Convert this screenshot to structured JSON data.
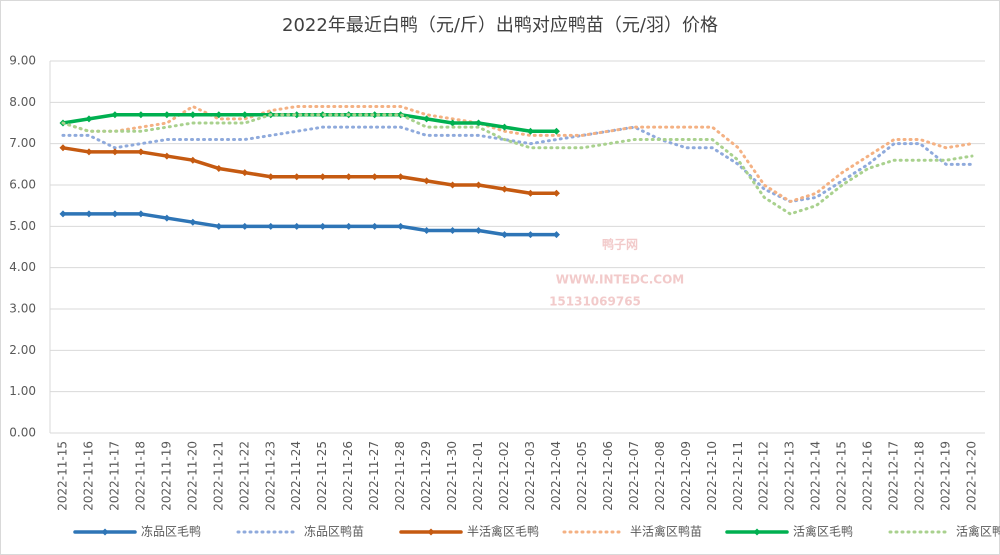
{
  "chart_data": {
    "type": "line",
    "title": "2022年最近白鸭（元/斤）出鸭对应鸭苗（元/羽）价格",
    "watermark": [
      "鸭子网",
      "WWW.INTEDC.COM",
      "15131069765"
    ],
    "categories": [
      "2022-11-15",
      "2022-11-16",
      "2022-11-17",
      "2022-11-18",
      "2022-11-19",
      "2022-11-20",
      "2022-11-21",
      "2022-11-22",
      "2022-11-23",
      "2022-11-24",
      "2022-11-25",
      "2022-11-26",
      "2022-11-27",
      "2022-11-28",
      "2022-11-29",
      "2022-11-30",
      "2022-12-01",
      "2022-12-02",
      "2022-12-03",
      "2022-12-04",
      "2022-12-05",
      "2022-12-06",
      "2022-12-07",
      "2022-12-08",
      "2022-12-09",
      "2022-12-10",
      "2022-12-11",
      "2022-12-12",
      "2022-12-13",
      "2022-12-14",
      "2022-12-15",
      "2022-12-16",
      "2022-12-17",
      "2022-12-18",
      "2022-12-19",
      "2022-12-20"
    ],
    "ylim": [
      0,
      9
    ],
    "yticks": [
      {
        "value": 0,
        "label": "0.00"
      },
      {
        "value": 1,
        "label": "1.00"
      },
      {
        "value": 2,
        "label": "2.00"
      },
      {
        "value": 3,
        "label": "3.00"
      },
      {
        "value": 4,
        "label": "4.00"
      },
      {
        "value": 5,
        "label": "5.00"
      },
      {
        "value": 6,
        "label": "6.00"
      },
      {
        "value": 7,
        "label": "7.00"
      },
      {
        "value": 8,
        "label": "8.00"
      },
      {
        "value": 9,
        "label": "9.00"
      }
    ],
    "grid": true,
    "legend": "bottom",
    "series": [
      {
        "name": "冻品区毛鸭",
        "color": "#2e75b6",
        "style": "solid",
        "values": [
          5.3,
          5.3,
          5.3,
          5.3,
          5.2,
          5.1,
          5.0,
          5.0,
          5.0,
          5.0,
          5.0,
          5.0,
          5.0,
          5.0,
          4.9,
          4.9,
          4.9,
          4.8,
          4.8,
          4.8,
          null,
          null,
          null,
          null,
          null,
          null,
          null,
          null,
          null,
          null,
          null,
          null,
          null,
          null,
          null,
          null
        ]
      },
      {
        "name": "冻品区鸭苗",
        "color": "#8faadc",
        "style": "dotted",
        "values": [
          7.2,
          7.2,
          6.9,
          7.0,
          7.1,
          7.1,
          7.1,
          7.1,
          7.2,
          7.3,
          7.4,
          7.4,
          7.4,
          7.4,
          7.2,
          7.2,
          7.2,
          7.1,
          7.0,
          7.1,
          7.2,
          7.3,
          7.4,
          7.1,
          6.9,
          6.9,
          6.5,
          5.9,
          5.6,
          5.7,
          6.1,
          6.5,
          7.0,
          7.0,
          6.5,
          6.5
        ]
      },
      {
        "name": "半活禽区毛鸭",
        "color": "#c55a11",
        "style": "solid",
        "values": [
          6.9,
          6.8,
          6.8,
          6.8,
          6.7,
          6.6,
          6.4,
          6.3,
          6.2,
          6.2,
          6.2,
          6.2,
          6.2,
          6.2,
          6.1,
          6.0,
          6.0,
          5.9,
          5.8,
          5.8,
          null,
          null,
          null,
          null,
          null,
          null,
          null,
          null,
          null,
          null,
          null,
          null,
          null,
          null,
          null,
          null
        ]
      },
      {
        "name": "半活禽区鸭苗",
        "color": "#f4b183",
        "style": "dotted",
        "values": [
          7.5,
          7.3,
          7.3,
          7.4,
          7.5,
          7.9,
          7.6,
          7.6,
          7.8,
          7.9,
          7.9,
          7.9,
          7.9,
          7.9,
          7.7,
          7.6,
          7.5,
          7.3,
          7.2,
          7.2,
          7.2,
          7.3,
          7.4,
          7.4,
          7.4,
          7.4,
          6.9,
          6.0,
          5.6,
          5.8,
          6.3,
          6.7,
          7.1,
          7.1,
          6.9,
          7.0
        ]
      },
      {
        "name": "活禽区毛鸭",
        "color": "#00b050",
        "style": "solid",
        "values": [
          7.5,
          7.6,
          7.7,
          7.7,
          7.7,
          7.7,
          7.7,
          7.7,
          7.7,
          7.7,
          7.7,
          7.7,
          7.7,
          7.7,
          7.6,
          7.5,
          7.5,
          7.4,
          7.3,
          7.3,
          null,
          null,
          null,
          null,
          null,
          null,
          null,
          null,
          null,
          null,
          null,
          null,
          null,
          null,
          null,
          null
        ]
      },
      {
        "name": "活禽区鸭苗",
        "color": "#a9d18e",
        "style": "dotted",
        "values": [
          7.5,
          7.3,
          7.3,
          7.3,
          7.4,
          7.5,
          7.5,
          7.5,
          7.7,
          7.7,
          7.7,
          7.7,
          7.7,
          7.7,
          7.4,
          7.4,
          7.4,
          7.1,
          6.9,
          6.9,
          6.9,
          7.0,
          7.1,
          7.1,
          7.1,
          7.1,
          6.6,
          5.7,
          5.3,
          5.5,
          6.0,
          6.4,
          6.6,
          6.6,
          6.6,
          6.7
        ]
      }
    ]
  }
}
